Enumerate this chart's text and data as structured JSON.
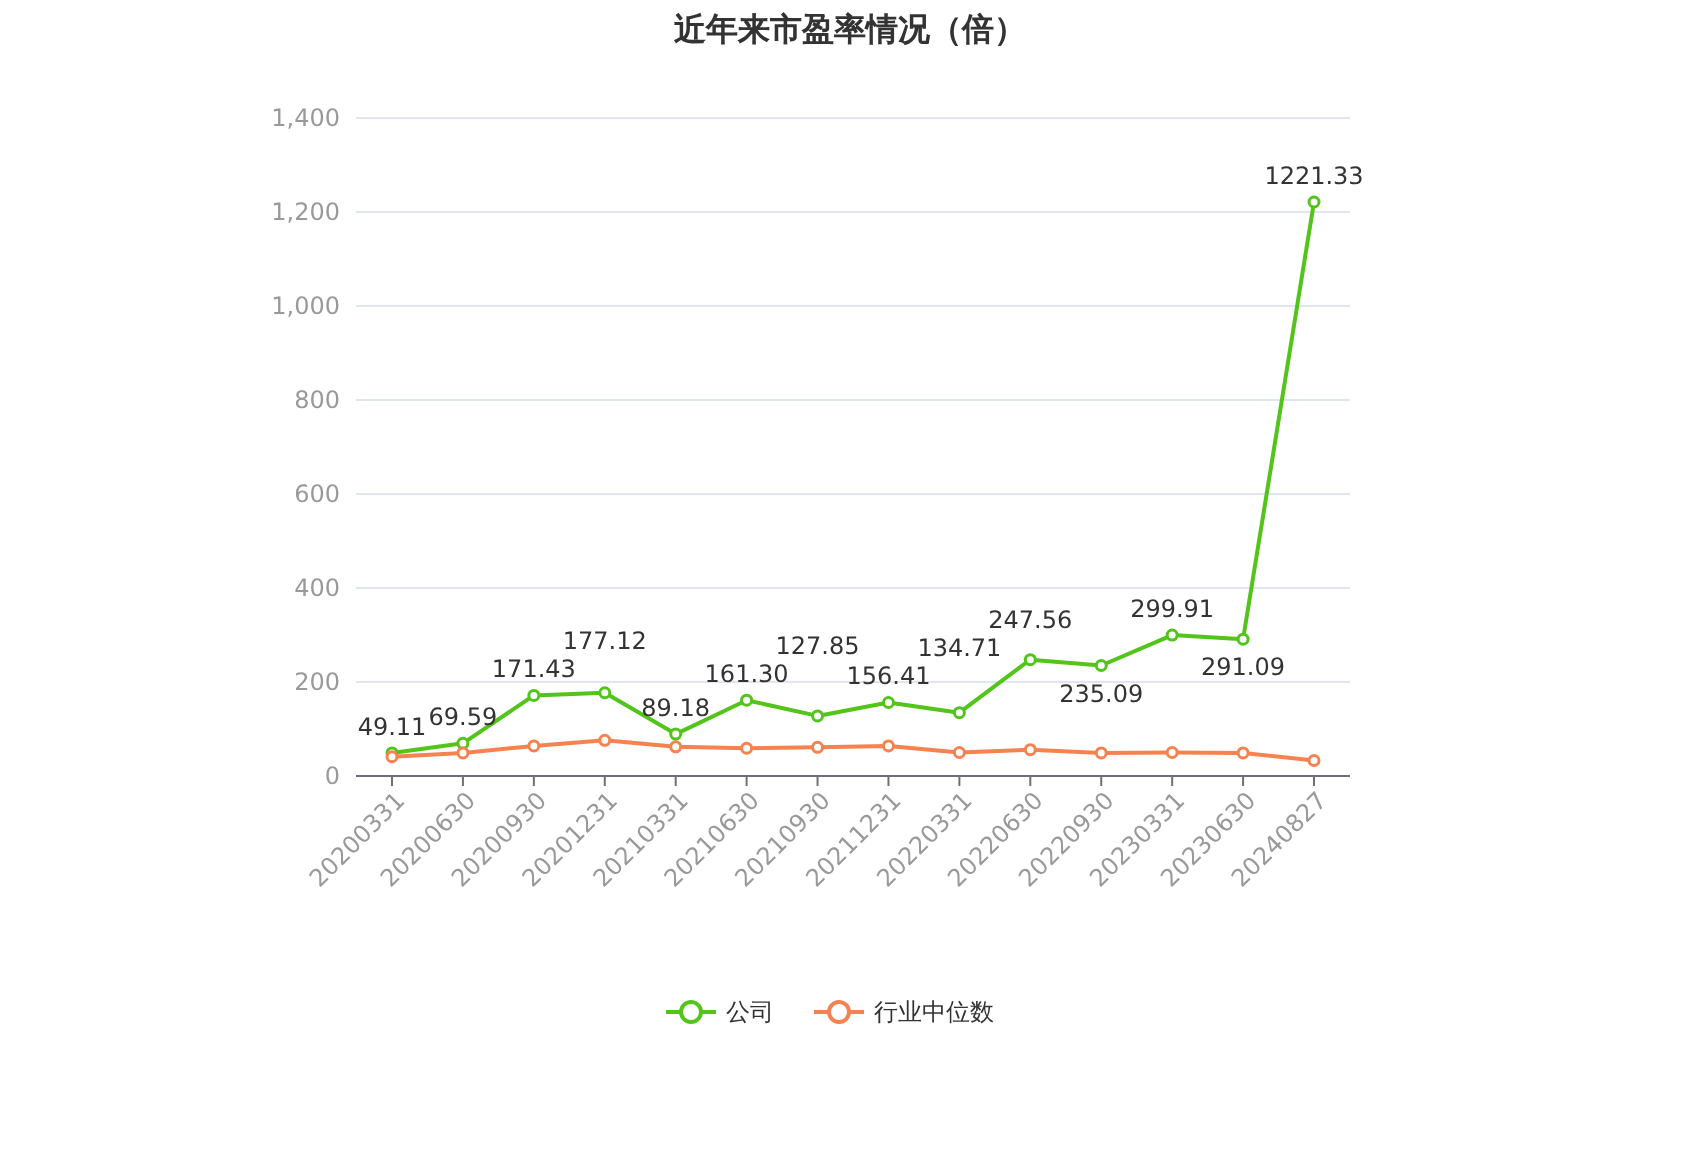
{
  "chart_data": {
    "type": "line",
    "title": "近年来市盈率情况（倍）",
    "categories": [
      "20200331",
      "20200630",
      "20200930",
      "20201231",
      "20210331",
      "20210630",
      "20210930",
      "20211231",
      "20220331",
      "20220630",
      "20220930",
      "20230331",
      "20230630",
      "20240827"
    ],
    "series": [
      {
        "name": "公司",
        "color": "#52c41a",
        "values": [
          49.11,
          69.59,
          171.43,
          177.12,
          89.18,
          161.3,
          127.85,
          156.41,
          134.71,
          247.56,
          235.09,
          299.91,
          291.09,
          1221.33
        ],
        "value_labels": [
          "49.11",
          "69.59",
          "171.43",
          "177.12",
          "89.18",
          "161.30",
          "127.85",
          "156.41",
          "134.71",
          "247.56",
          "235.09",
          "299.91",
          "291.09",
          "1221.33"
        ]
      },
      {
        "name": "行业中位数",
        "color": "#f5824f",
        "values": [
          41,
          49,
          64,
          76,
          62,
          59,
          61,
          64,
          50,
          56,
          49,
          50,
          49,
          33
        ]
      }
    ],
    "ylim": [
      0,
      1400
    ],
    "yticks": [
      0,
      {
        "value": 200,
        "label": "200"
      },
      {
        "value": 400,
        "label": "400"
      },
      {
        "value": 600,
        "label": "600"
      },
      {
        "value": 800,
        "label": "800"
      },
      {
        "value": 1000,
        "label": "1,000"
      },
      {
        "value": 1200,
        "label": "1,200"
      },
      {
        "value": 1400,
        "label": "1,400"
      }
    ],
    "grid": "y",
    "legend": "bottom",
    "marker": "circle",
    "line_style": "solid"
  }
}
